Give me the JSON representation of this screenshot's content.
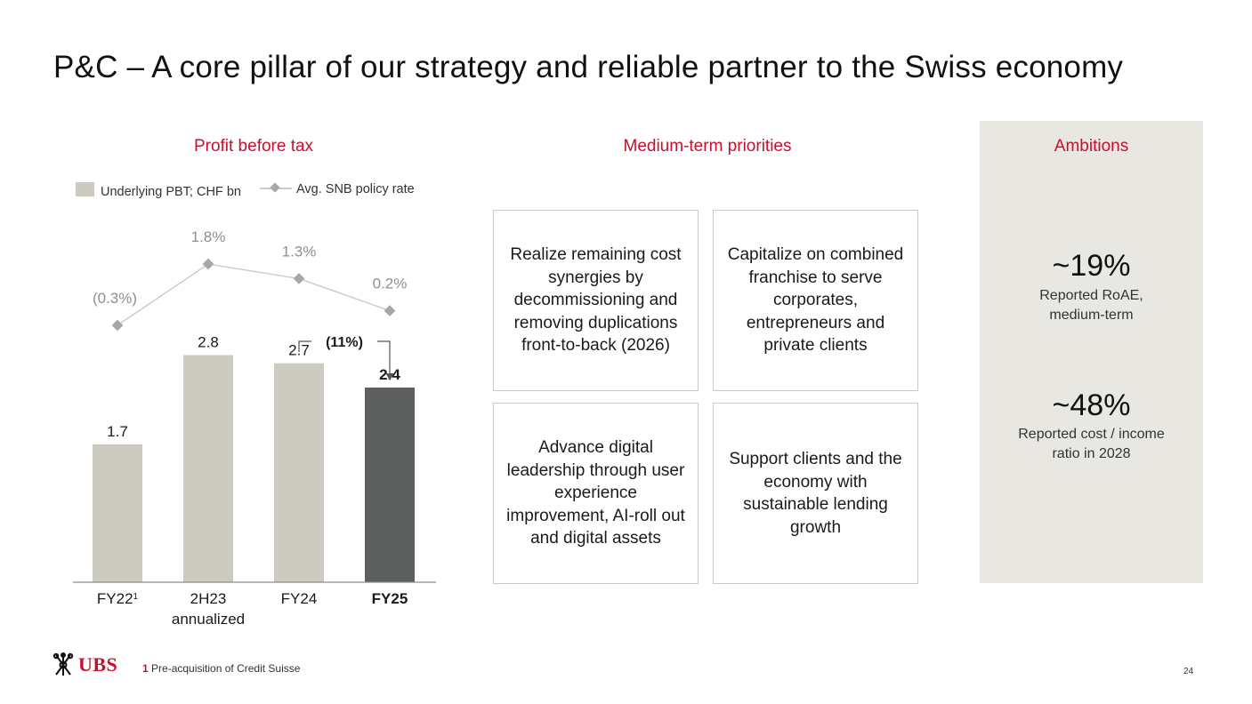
{
  "title": "P&C – A core pillar of our strategy and reliable partner to the Swiss economy",
  "sections": {
    "profit": "Profit before tax",
    "priorities": "Medium-term priorities",
    "ambitions": "Ambitions"
  },
  "chart_data": {
    "type": "bar",
    "title": "Profit before tax",
    "categories": [
      "FY22",
      "2H23 annualized",
      "FY24",
      "FY25"
    ],
    "category_labels": [
      {
        "lines": [
          "FY22"
        ],
        "sup": "1",
        "bold": false
      },
      {
        "lines": [
          "2H23",
          "annualized"
        ],
        "sup": "",
        "bold": false
      },
      {
        "lines": [
          "FY24"
        ],
        "sup": "",
        "bold": false
      },
      {
        "lines": [
          "FY25"
        ],
        "sup": "",
        "bold": true
      }
    ],
    "series": [
      {
        "name": "Underlying PBT; CHF bn",
        "kind": "bar",
        "values": [
          1.7,
          2.8,
          2.7,
          2.4
        ],
        "labels": [
          "1.7",
          "2.8",
          "2.7",
          "2.4"
        ],
        "colors": [
          "#cdcbbf",
          "#cdcbbf",
          "#cdcbbf",
          "#5e5f5f"
        ]
      },
      {
        "name": "Avg. SNB policy rate",
        "kind": "line",
        "marker": "diamond",
        "values": [
          -0.3,
          1.8,
          1.3,
          0.2
        ],
        "labels": [
          "(0.3%)",
          "1.8%",
          "1.3%",
          "0.2%"
        ]
      }
    ],
    "annotation": {
      "text": "(11%)",
      "from": "FY24",
      "to": "FY25"
    },
    "ylim": [
      0,
      3.2
    ],
    "rate_ylim": [
      -0.3,
      1.8
    ],
    "legend_position": "top-left",
    "grid": false
  },
  "priorities": [
    "Realize remaining cost synergies by decommissioning and removing duplications front-to-back (2026)",
    "Capitalize on combined franchise to serve corporates, entrepreneurs and private clients",
    "Advance digital leadership through user experience improvement, AI-roll out and digital assets",
    "Support clients and the economy with sustainable lending growth"
  ],
  "ambitions": [
    {
      "value": "~19%",
      "label": "Reported RoAE, medium-term"
    },
    {
      "value": "~48%",
      "label": "Reported cost / income ratio in 2028"
    }
  ],
  "footnote": {
    "number": "1",
    "text": "Pre-acquisition of Credit Suisse"
  },
  "logo": "UBS",
  "page_number": "24",
  "colors": {
    "accent": "#c8102e",
    "bar": "#cdcbbf",
    "bar_highlight": "#5e5f5f",
    "line": "#cccccc",
    "marker": "#a7a7a7",
    "panel": "#e8e7e1"
  }
}
